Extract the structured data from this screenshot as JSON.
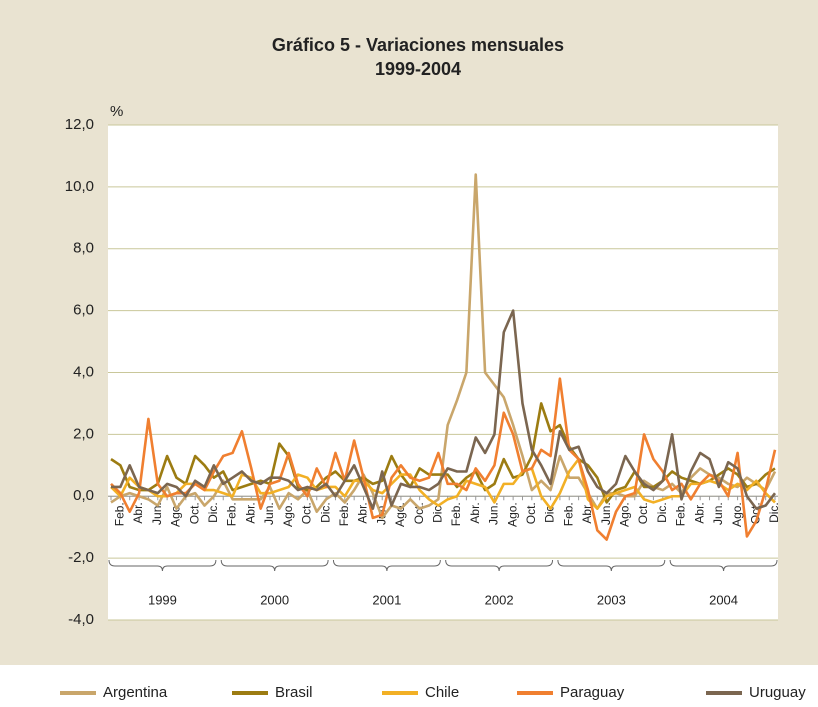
{
  "chart_data": {
    "type": "line",
    "title": "Gráfico 5 - Variaciones mensuales",
    "subtitle": "1999-2004",
    "y_label": "%",
    "categories": [
      null,
      "Feb.",
      null,
      "Abr.",
      null,
      "Jun.",
      null,
      "Ago.",
      null,
      "Oct.",
      null,
      "Dic.",
      null,
      "Feb.",
      null,
      "Abr.",
      null,
      "Jun.",
      null,
      "Ago.",
      null,
      "Oct.",
      null,
      "Dic.",
      null,
      "Feb.",
      null,
      "Abr.",
      null,
      "Jun.",
      null,
      "Ago.",
      null,
      "Oct.",
      null,
      "Dic.",
      null,
      "Feb.",
      null,
      "Abr.",
      null,
      "Jun.",
      null,
      "Ago.",
      null,
      "Oct.",
      null,
      "Dic.",
      null,
      "Feb.",
      null,
      "Abr.",
      null,
      "Jun.",
      null,
      "Ago.",
      null,
      "Oct.",
      null,
      "Dic.",
      null,
      "Feb.",
      null,
      "Abr.",
      null,
      "Jun.",
      null,
      "Ago.",
      null,
      "Oct.",
      null,
      "Dic."
    ],
    "years": [
      "1999",
      "2000",
      "2001",
      "2002",
      "2003",
      "2004"
    ],
    "ylim": [
      -4,
      12
    ],
    "yticks": [
      {
        "value": -4,
        "label": "-4,0"
      },
      {
        "value": -2,
        "label": "-2,0"
      },
      {
        "value": 0,
        "label": "0,0"
      },
      {
        "value": 2,
        "label": "2,0"
      },
      {
        "value": 4,
        "label": "4,0"
      },
      {
        "value": 6,
        "label": "6,0"
      },
      {
        "value": 8,
        "label": "8,0"
      },
      {
        "value": 10,
        "label": "10,0"
      },
      {
        "value": 12,
        "label": "12,0"
      }
    ],
    "grid": true,
    "legend": "bottom",
    "series": [
      {
        "name": "Argentina",
        "color": "#c9a66b",
        "values": [
          -0.2,
          0.0,
          0.1,
          0.0,
          -0.1,
          -0.3,
          0.3,
          -0.4,
          0.0,
          0.1,
          -0.3,
          0.0,
          0.5,
          -0.1,
          -0.1,
          -0.1,
          -0.1,
          0.3,
          -0.4,
          0.1,
          -0.1,
          0.2,
          -0.5,
          -0.1,
          0.1,
          -0.2,
          0.2,
          0.7,
          0.1,
          -0.7,
          -0.3,
          -0.4,
          -0.1,
          -0.4,
          -0.3,
          -0.1,
          2.3,
          3.1,
          4.0,
          10.4,
          4.0,
          3.6,
          3.2,
          2.3,
          1.3,
          0.2,
          0.5,
          0.2,
          1.3,
          0.6,
          0.6,
          0.1,
          -0.4,
          0.1,
          0.1,
          0.0,
          0.0,
          0.5,
          0.3,
          0.2,
          0.4,
          0.1,
          0.6,
          0.9,
          0.7,
          0.6,
          0.4,
          0.3,
          0.6,
          0.4,
          0.2,
          0.8
        ]
      },
      {
        "name": "Brasil",
        "color": "#9c7c12",
        "values": [
          1.2,
          1.0,
          0.3,
          0.2,
          0.2,
          0.4,
          1.3,
          0.6,
          0.4,
          1.3,
          1.0,
          0.6,
          0.8,
          0.2,
          0.3,
          0.4,
          0.5,
          0.4,
          1.7,
          1.3,
          0.3,
          0.2,
          0.3,
          0.6,
          0.8,
          0.5,
          0.5,
          0.6,
          0.4,
          0.5,
          1.3,
          0.7,
          0.3,
          0.9,
          0.7,
          0.7,
          0.7,
          0.3,
          0.6,
          0.8,
          0.2,
          0.4,
          1.2,
          0.6,
          0.7,
          1.3,
          3.0,
          2.1,
          2.3,
          1.6,
          1.2,
          1.0,
          0.6,
          -0.2,
          0.2,
          0.3,
          0.8,
          0.3,
          0.3,
          0.5,
          0.8,
          0.6,
          0.5,
          0.4,
          0.5,
          0.7,
          0.9,
          0.7,
          0.3,
          0.4,
          0.7,
          0.9
        ]
      },
      {
        "name": "Chile",
        "color": "#f2b025",
        "values": [
          0.3,
          0.0,
          0.6,
          0.3,
          0.2,
          0.0,
          0.0,
          0.1,
          0.4,
          0.4,
          0.2,
          0.2,
          0.1,
          0.0,
          0.7,
          0.6,
          0.1,
          0.1,
          0.2,
          0.3,
          0.7,
          0.6,
          0.2,
          0.3,
          0.3,
          0.0,
          0.5,
          0.5,
          0.2,
          0.1,
          0.4,
          0.7,
          0.7,
          0.2,
          -0.1,
          -0.3,
          -0.1,
          0.0,
          0.5,
          0.4,
          0.3,
          -0.2,
          0.4,
          0.4,
          0.8,
          0.9,
          0.0,
          -0.4,
          0.1,
          0.8,
          1.2,
          -0.1,
          -0.4,
          0.0,
          0.1,
          0.2,
          0.3,
          -0.1,
          -0.2,
          -0.1,
          0.0,
          0.0,
          0.4,
          0.4,
          0.5,
          0.4,
          0.2,
          0.4,
          0.2,
          0.5,
          0.1,
          -0.2
        ]
      },
      {
        "name": "Paraguay",
        "color": "#f07f30",
        "values": [
          0.4,
          0.1,
          -0.5,
          0.1,
          2.5,
          0.4,
          0.0,
          0.1,
          0.1,
          0.4,
          0.2,
          0.8,
          1.3,
          1.4,
          2.1,
          0.9,
          -0.4,
          0.4,
          0.5,
          1.4,
          0.4,
          0.0,
          0.9,
          0.3,
          1.4,
          0.5,
          1.8,
          0.6,
          -0.7,
          -0.6,
          0.6,
          1.0,
          0.6,
          0.5,
          0.6,
          1.4,
          0.4,
          0.4,
          0.2,
          0.9,
          0.5,
          1.0,
          2.7,
          2.0,
          0.8,
          0.9,
          1.5,
          1.3,
          3.8,
          1.5,
          1.2,
          0.2,
          -1.1,
          -1.4,
          -0.5,
          0.0,
          0.1,
          2.0,
          1.2,
          0.8,
          0.2,
          0.4,
          -0.1,
          0.4,
          0.7,
          0.5,
          0.0,
          1.4,
          -1.3,
          -0.8,
          0.2,
          1.5
        ]
      },
      {
        "name": "Uruguay",
        "color": "#7b6650",
        "values": [
          0.3,
          0.3,
          1.0,
          0.3,
          0.2,
          0.1,
          0.4,
          0.3,
          0.0,
          0.5,
          0.3,
          1.0,
          0.4,
          0.6,
          0.8,
          0.5,
          0.4,
          0.6,
          0.6,
          0.5,
          0.2,
          0.3,
          0.2,
          0.4,
          0.0,
          0.5,
          1.0,
          0.3,
          -0.4,
          0.8,
          -0.3,
          0.4,
          0.3,
          0.3,
          0.2,
          0.4,
          0.9,
          0.8,
          0.8,
          1.9,
          1.4,
          2.0,
          5.3,
          6.0,
          3.0,
          1.5,
          1.0,
          0.4,
          2.1,
          1.5,
          1.6,
          0.8,
          0.3,
          0.1,
          0.4,
          1.3,
          0.8,
          0.4,
          0.2,
          0.5,
          2.0,
          -0.1,
          0.8,
          1.4,
          1.2,
          0.3,
          1.1,
          0.9,
          0.0,
          -0.4,
          -0.3,
          0.1
        ]
      }
    ]
  }
}
